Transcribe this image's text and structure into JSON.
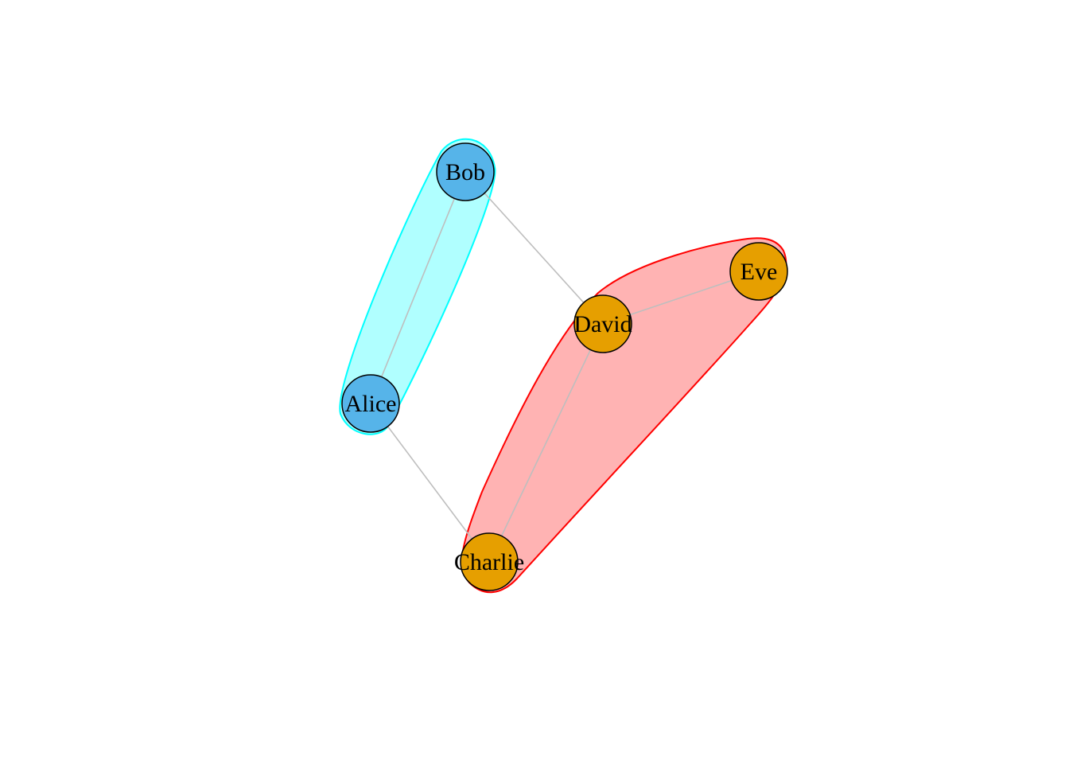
{
  "graph": {
    "nodes": [
      {
        "id": "bob",
        "label": "Bob",
        "group": "blue"
      },
      {
        "id": "alice",
        "label": "Alice",
        "group": "blue"
      },
      {
        "id": "david",
        "label": "David",
        "group": "orange"
      },
      {
        "id": "eve",
        "label": "Eve",
        "group": "orange"
      },
      {
        "id": "charlie",
        "label": "Charlie",
        "group": "orange"
      }
    ],
    "edges": [
      {
        "source": "bob",
        "target": "alice"
      },
      {
        "source": "bob",
        "target": "david"
      },
      {
        "source": "alice",
        "target": "charlie"
      },
      {
        "source": "david",
        "target": "eve"
      },
      {
        "source": "david",
        "target": "charlie"
      }
    ],
    "groups": [
      {
        "id": "blue",
        "members": [
          "bob",
          "alice"
        ],
        "fill": "#b0ffff",
        "stroke": "#00ffff",
        "node_color": "#56b4e9"
      },
      {
        "id": "orange",
        "members": [
          "david",
          "eve",
          "charlie"
        ],
        "fill": "#ffb3b3",
        "stroke": "#ff0000",
        "node_color": "#e69f00"
      }
    ],
    "edge_color": "#bebebe",
    "node_border": "#000000"
  }
}
